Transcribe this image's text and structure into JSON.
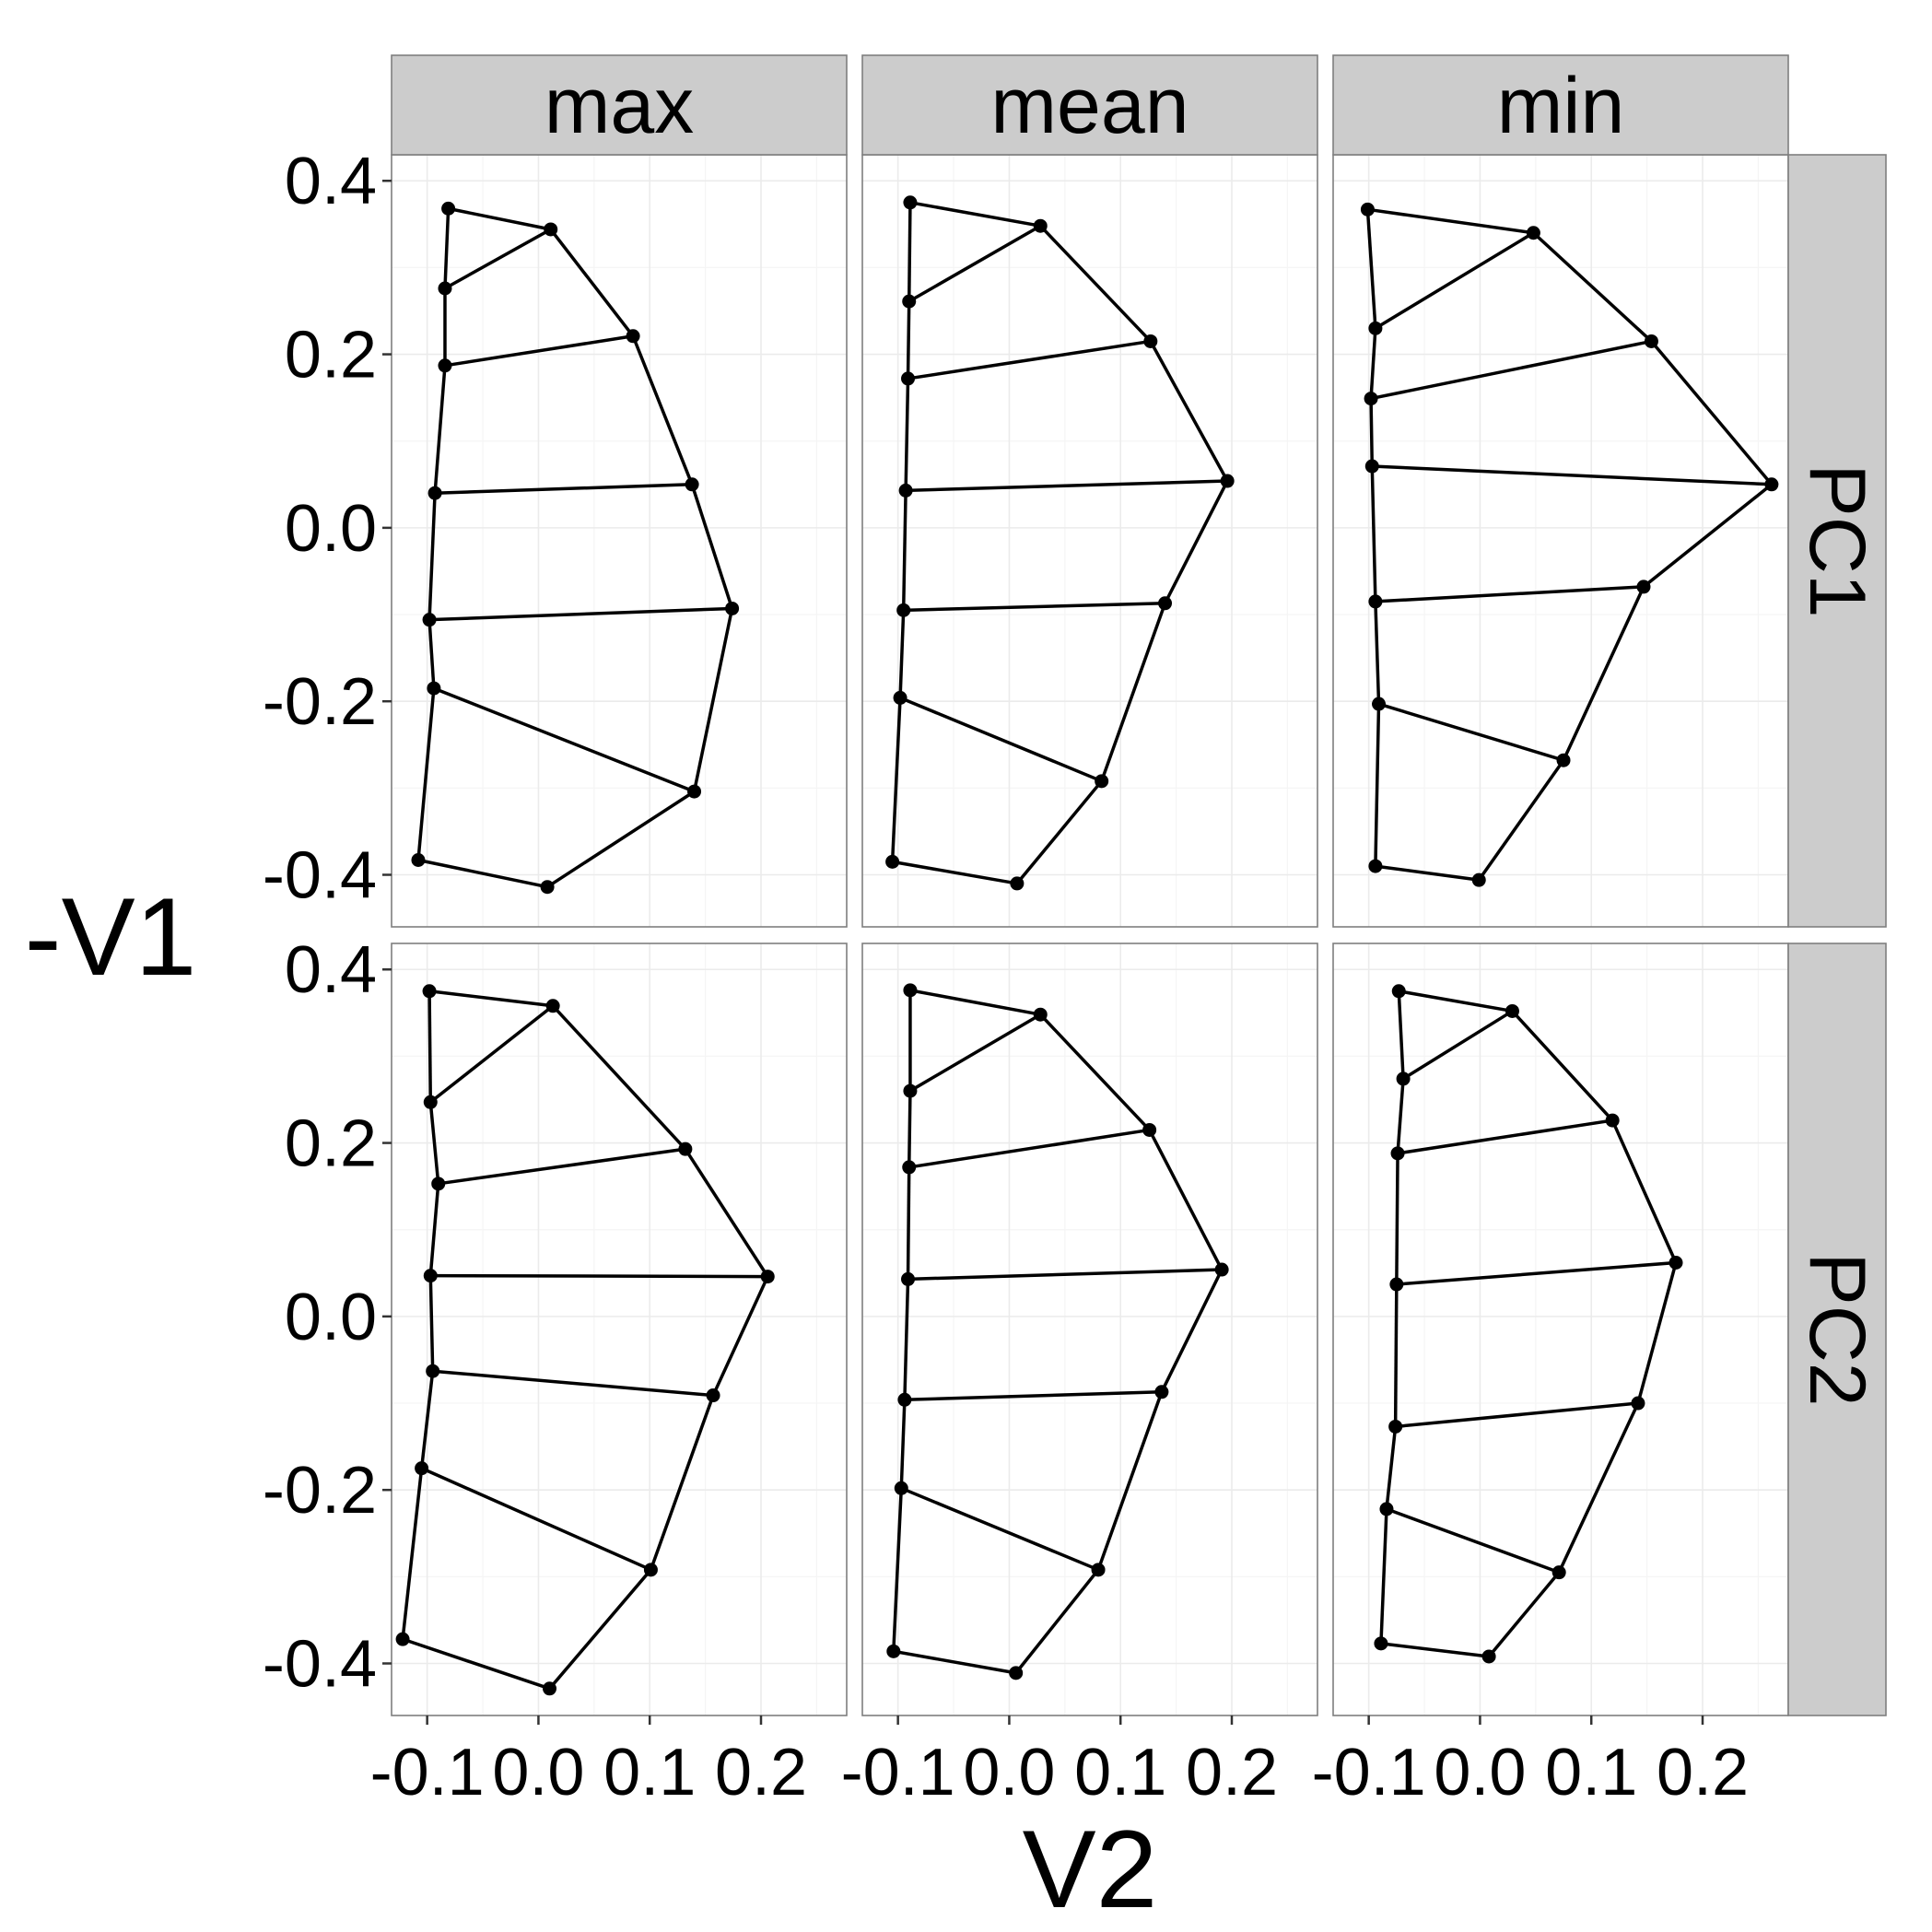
{
  "chart_data": {
    "type": "scatter",
    "facet_columns": [
      "max",
      "mean",
      "min"
    ],
    "facet_rows": [
      "PC1",
      "PC2"
    ],
    "xlabel": "V2",
    "ylabel": "-V1",
    "xlim": [
      -0.132,
      0.277
    ],
    "ylim": [
      -0.46,
      0.43
    ],
    "x_ticks": [
      -0.1,
      0.0,
      0.1,
      0.2
    ],
    "x_tick_labels": [
      "-0.1",
      "0.0",
      "0.1",
      "0.2"
    ],
    "y_ticks": [
      -0.4,
      -0.2,
      0.0,
      0.2,
      0.4
    ],
    "y_tick_labels": [
      "-0.4",
      "-0.2",
      "0.0",
      "0.2",
      "0.4"
    ],
    "grid": true,
    "series": [
      {
        "row": "PC1",
        "col": "max",
        "x": [
          -0.081,
          -0.084,
          -0.084,
          -0.093,
          -0.098,
          -0.094,
          -0.108,
          0.011,
          0.085,
          0.138,
          0.174,
          0.14,
          0.008
        ],
        "y": [
          0.368,
          0.276,
          0.187,
          0.04,
          -0.106,
          -0.185,
          -0.383,
          0.344,
          0.221,
          0.05,
          -0.093,
          -0.304,
          -0.414
        ]
      },
      {
        "row": "PC1",
        "col": "mean",
        "x": [
          -0.089,
          -0.09,
          -0.091,
          -0.093,
          -0.095,
          -0.098,
          -0.105,
          0.028,
          0.127,
          0.196,
          0.14,
          0.083,
          0.007
        ],
        "y": [
          0.375,
          0.261,
          0.172,
          0.043,
          -0.095,
          -0.196,
          -0.385,
          0.348,
          0.215,
          0.054,
          -0.087,
          -0.292,
          -0.41
        ]
      },
      {
        "row": "PC1",
        "col": "min",
        "x": [
          -0.101,
          -0.094,
          -0.098,
          -0.097,
          -0.094,
          -0.091,
          -0.094,
          0.048,
          0.154,
          0.262,
          0.147,
          0.075,
          -0.001
        ],
        "y": [
          0.367,
          0.23,
          0.149,
          0.071,
          -0.085,
          -0.203,
          -0.39,
          0.34,
          0.215,
          0.05,
          -0.068,
          -0.268,
          -0.406
        ]
      },
      {
        "row": "PC2",
        "col": "max",
        "x": [
          -0.098,
          -0.097,
          -0.09,
          -0.097,
          -0.095,
          -0.105,
          -0.122,
          0.013,
          0.132,
          0.206,
          0.157,
          0.101,
          0.01
        ],
        "y": [
          0.375,
          0.247,
          0.153,
          0.047,
          -0.063,
          -0.175,
          -0.372,
          0.358,
          0.193,
          0.046,
          -0.091,
          -0.292,
          -0.429
        ]
      },
      {
        "row": "PC2",
        "col": "mean",
        "x": [
          -0.089,
          -0.089,
          -0.09,
          -0.091,
          -0.094,
          -0.097,
          -0.104,
          0.028,
          0.126,
          0.191,
          0.137,
          0.08,
          0.006
        ],
        "y": [
          0.376,
          0.26,
          0.172,
          0.043,
          -0.096,
          -0.198,
          -0.386,
          0.348,
          0.215,
          0.054,
          -0.087,
          -0.292,
          -0.411
        ]
      },
      {
        "row": "PC2",
        "col": "min",
        "x": [
          -0.073,
          -0.069,
          -0.074,
          -0.075,
          -0.076,
          -0.084,
          -0.089,
          0.029,
          0.119,
          0.176,
          0.142,
          0.071,
          0.008
        ],
        "y": [
          0.375,
          0.274,
          0.188,
          0.037,
          -0.127,
          -0.222,
          -0.377,
          0.352,
          0.226,
          0.062,
          -0.1,
          -0.295,
          -0.392
        ]
      }
    ],
    "edges": [
      [
        0,
        1
      ],
      [
        1,
        2
      ],
      [
        2,
        3
      ],
      [
        3,
        4
      ],
      [
        4,
        5
      ],
      [
        5,
        6
      ],
      [
        0,
        7
      ],
      [
        7,
        8
      ],
      [
        8,
        9
      ],
      [
        9,
        10
      ],
      [
        10,
        11
      ],
      [
        11,
        12
      ],
      [
        1,
        7
      ],
      [
        2,
        8
      ],
      [
        3,
        9
      ],
      [
        4,
        10
      ],
      [
        5,
        11
      ],
      [
        6,
        12
      ]
    ]
  }
}
